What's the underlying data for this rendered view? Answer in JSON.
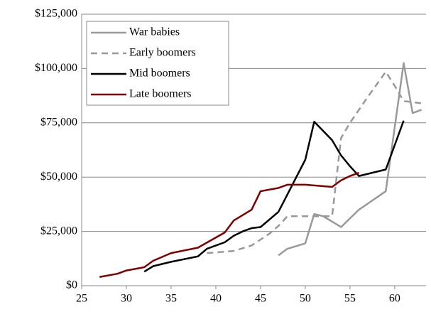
{
  "chart_data": {
    "type": "line",
    "xlim": [
      25,
      63.5
    ],
    "xticks": [
      25,
      30,
      35,
      40,
      45,
      50,
      55,
      60
    ],
    "ylim": [
      0,
      125000
    ],
    "yticks": [
      {
        "value": 0,
        "label": "$0"
      },
      {
        "value": 25000,
        "label": "$25,000"
      },
      {
        "value": 50000,
        "label": "$50,000"
      },
      {
        "value": 75000,
        "label": "$75,000"
      },
      {
        "value": 100000,
        "label": "$100,000"
      },
      {
        "value": 125000,
        "label": "$125,000"
      }
    ],
    "grid": true,
    "legend": "upper left",
    "series": [
      {
        "name": "War babies",
        "color": "#999999",
        "dashed": false,
        "x": [
          47,
          48,
          50,
          51,
          52,
          53,
          54,
          56,
          59,
          61,
          62,
          63
        ],
        "values": [
          14000,
          17000,
          19500,
          33000,
          32000,
          29500,
          27000,
          35000,
          43500,
          102500,
          79500,
          81000
        ]
      },
      {
        "name": "Early boomers",
        "color": "#999999",
        "dashed": true,
        "x": [
          39,
          42,
          44,
          46,
          47,
          48,
          52,
          53,
          54,
          55,
          57,
          59,
          60,
          61,
          63
        ],
        "values": [
          15000,
          16000,
          18500,
          24000,
          27500,
          32000,
          32000,
          32000,
          68000,
          75000,
          87000,
          98500,
          92000,
          85000,
          84000
        ]
      },
      {
        "name": "Mid boomers",
        "color": "#000000",
        "dashed": false,
        "x": [
          32,
          33,
          35,
          38,
          39,
          41,
          42,
          43,
          44,
          45,
          47,
          48,
          50,
          51,
          53,
          54,
          55,
          56,
          59,
          61
        ],
        "values": [
          6500,
          9000,
          11000,
          13500,
          17000,
          20000,
          23000,
          25000,
          26500,
          27000,
          34000,
          42000,
          58000,
          75500,
          67000,
          60000,
          55000,
          50500,
          53500,
          76000
        ]
      },
      {
        "name": "Late boomers",
        "color": "#7f0000",
        "dashed": false,
        "x": [
          27,
          29,
          30,
          32,
          33,
          35,
          38,
          41,
          42,
          44,
          45,
          47,
          48,
          50,
          53,
          54,
          55,
          56
        ],
        "values": [
          4000,
          5500,
          7000,
          8500,
          11500,
          15000,
          17500,
          24500,
          30000,
          35000,
          43500,
          45000,
          46500,
          46500,
          45500,
          48500,
          50500,
          52000
        ]
      }
    ]
  }
}
